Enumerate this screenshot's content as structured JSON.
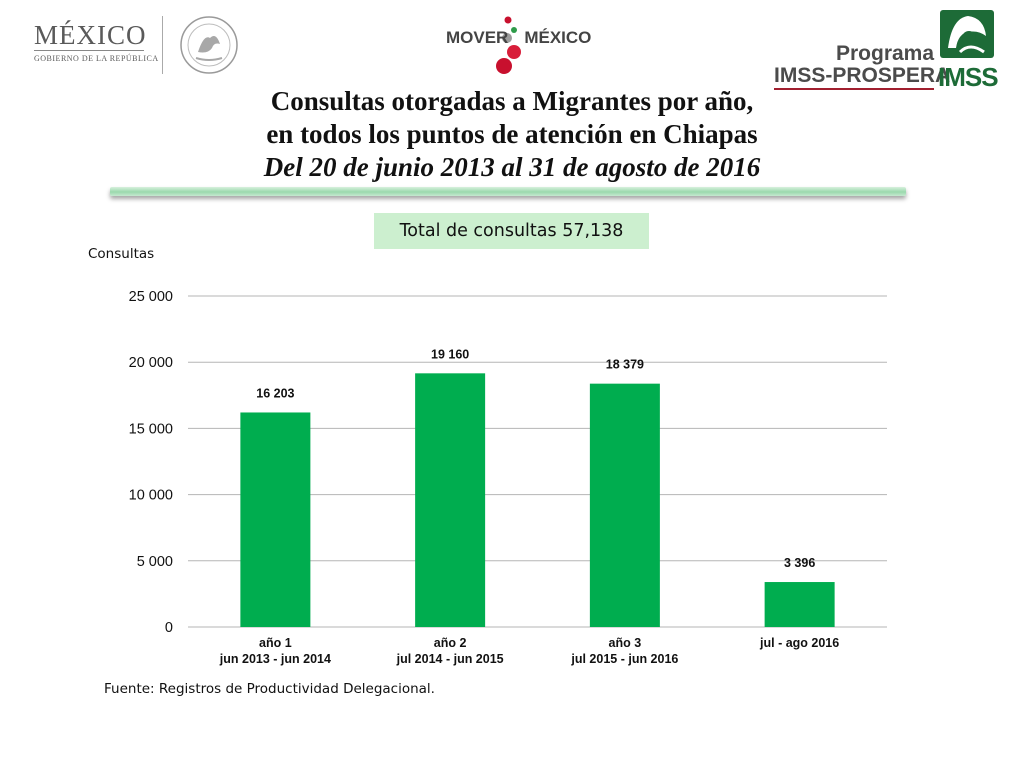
{
  "header": {
    "logo_mexico": {
      "word": "MÉXICO",
      "subtitle": "GOBIERNO DE LA REPÚBLICA"
    },
    "logo_mover": {
      "part1": "MOVER",
      "part2": "MÉXICO"
    },
    "logo_imss": {
      "line1": "Programa",
      "line2": "IMSS-PROSPERA",
      "brand": "IMSS"
    }
  },
  "title": {
    "line1": "Consultas otorgadas a Migrantes por año,",
    "line2": "en  todos los puntos de atención en Chiapas",
    "line3": "Del 20 de junio 2013 al 31 de agosto de 2016"
  },
  "total_label": "Total de consultas 57,138",
  "source": "Fuente: Registros de Productividad Delegacional.",
  "colors": {
    "bar": "#00ad4f",
    "grid": "#b5b5b5",
    "brand_red": "#a11f2f",
    "brand_green": "#1d6b37"
  },
  "chart_data": {
    "type": "bar",
    "title": "",
    "ylabel": "Consultas",
    "xlabel": "",
    "ylim": [
      0,
      25000
    ],
    "yticks": [
      0,
      5000,
      10000,
      15000,
      20000,
      25000
    ],
    "ytick_labels": [
      "0",
      "5 000",
      "10 000",
      "15 000",
      "20 000",
      "25 000"
    ],
    "grid": true,
    "categories": [
      [
        "año 1",
        "jun 2013 - jun 2014"
      ],
      [
        "año 2",
        "jul 2014 - jun 2015"
      ],
      [
        "año 3",
        "jul 2015 - jun 2016"
      ],
      [
        "jul - ago 2016"
      ]
    ],
    "values": [
      16203,
      19160,
      18379,
      3396
    ],
    "data_labels": [
      "16 203",
      "19 160",
      "18 379",
      "3 396"
    ]
  }
}
